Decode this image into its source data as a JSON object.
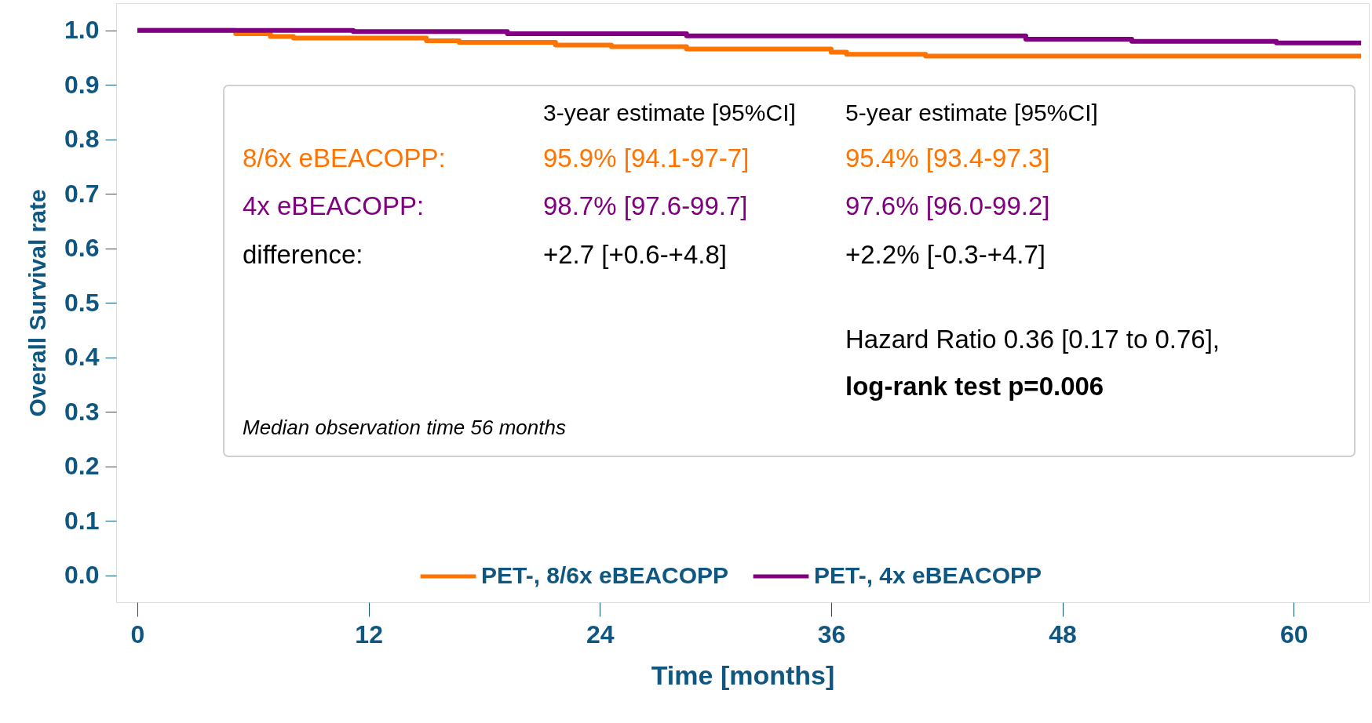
{
  "chart_data": {
    "type": "step",
    "xlabel": "Time [months]",
    "ylabel": "Overall Survival rate",
    "xlim": [
      -1.1,
      63.9
    ],
    "ylim": [
      -0.049,
      1.05
    ],
    "xticks": [
      0,
      12,
      24,
      36,
      48,
      60
    ],
    "yticks": [
      {
        "value": 0,
        "label": "0.0"
      },
      0.1,
      0.2,
      0.3,
      0.4,
      0.5,
      0.6,
      0.7,
      0.8,
      0.9,
      {
        "value": 1,
        "label": "1.0"
      }
    ],
    "grid": false,
    "legend": "bottom",
    "marker": "none",
    "line_style": "solid",
    "series": [
      {
        "name": "PET-, 8/6x eBEACOPP",
        "color": "#ff7300",
        "x": [
          0,
          5.1,
          6.9,
          8.1,
          15.0,
          16.7,
          21.7,
          24.6,
          28.5,
          36.0,
          36.8,
          40.9,
          63.5
        ],
        "values": [
          1.0,
          0.994,
          0.989,
          0.986,
          0.981,
          0.978,
          0.973,
          0.97,
          0.966,
          0.96,
          0.956,
          0.953,
          0.953
        ]
      },
      {
        "name": "PET-, 4x eBEACOPP",
        "color": "#800080",
        "x": [
          0,
          11.2,
          19.2,
          28.5,
          46.1,
          51.6,
          59.1,
          63.5
        ],
        "values": [
          1.0,
          0.998,
          0.994,
          0.99,
          0.984,
          0.98,
          0.977,
          0.977
        ]
      }
    ],
    "annotations": [
      "3-year estimate [95%CI]",
      "5-year estimate [95%CI]",
      "8/6x eBEACOPP:",
      "95.9% [94.1-97-7]",
      "95.4% [93.4-97.3]",
      "4x eBEACOPP:",
      "98.7% [97.6-99.7]",
      "97.6% [96.0-99.2]",
      "difference:",
      "+2.7 [+0.6-+4.8]",
      "+2.2% [-0.3-+4.7]",
      "Hazard Ratio 0.36 [0.17 to 0.76],",
      "log-rank test p=0.006",
      "Median observation time 56 months"
    ]
  }
}
